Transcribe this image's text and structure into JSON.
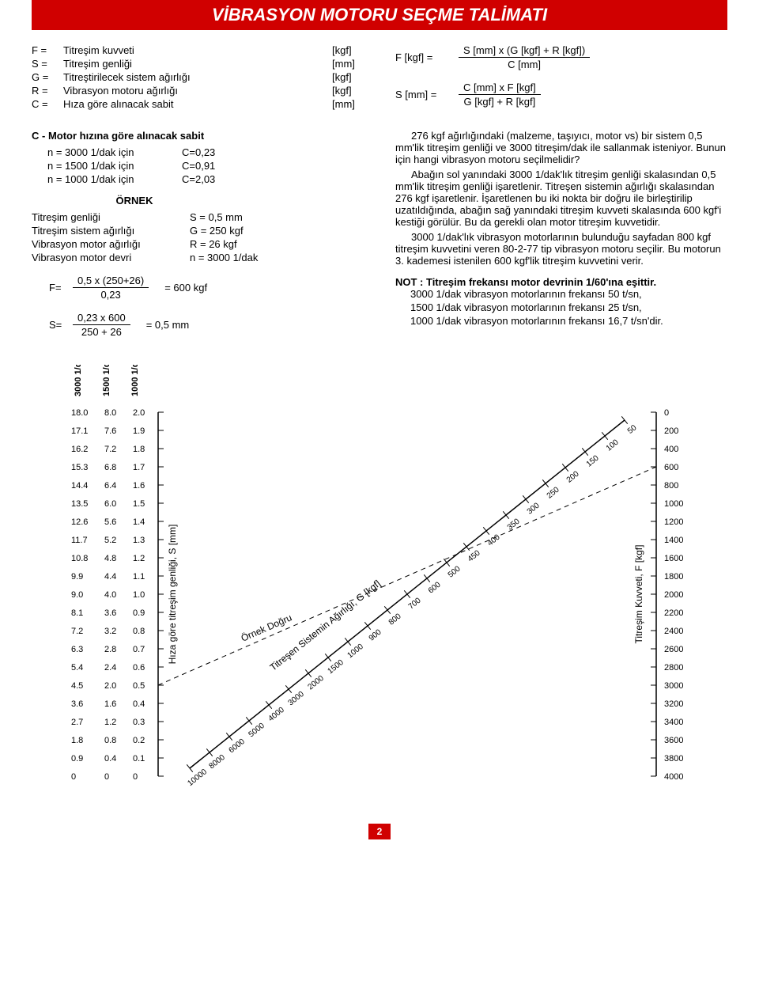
{
  "title": "VİBRASYON MOTORU SEÇME TALİMATI",
  "definitions": [
    {
      "sym": "F =",
      "desc": "Titreşim kuvveti",
      "unit": "[kgf]"
    },
    {
      "sym": "S =",
      "desc": "Titreşim genliği",
      "unit": "[mm]"
    },
    {
      "sym": "G =",
      "desc": "Titreştirilecek sistem ağırlığı",
      "unit": "[kgf]"
    },
    {
      "sym": "R =",
      "desc": "Vibrasyon motoru ağırlığı",
      "unit": "[kgf]"
    },
    {
      "sym": "C =",
      "desc": "Hıza göre alınacak sabit",
      "unit": "[mm]"
    }
  ],
  "top_formulas": [
    {
      "lhs": "F [kgf] =",
      "num": "S [mm] x (G [kgf] + R [kgf])",
      "den": "C [mm]"
    },
    {
      "lhs": "S [mm] =",
      "num": "C [mm] x F [kgf]",
      "den": "G [kgf] + R [kgf]"
    }
  ],
  "c_section": {
    "heading": "C - Motor hızına göre alınacak sabit",
    "rows": [
      {
        "a": "n = 3000 1/dak için",
        "b": "C=0,23"
      },
      {
        "a": "n = 1500 1/dak için",
        "b": "C=0,91"
      },
      {
        "a": "n = 1000 1/dak için",
        "b": "C=2,03"
      }
    ]
  },
  "ornek": {
    "heading": "ÖRNEK",
    "rows": [
      {
        "lbl": "Titreşim genliği",
        "val": "S = 0,5 mm"
      },
      {
        "lbl": "Titreşim sistem ağırlığı",
        "val": "G = 250 kgf"
      },
      {
        "lbl": "Vibrasyon motor ağırlığı",
        "val": "R = 26 kgf"
      },
      {
        "lbl": "Vibrasyon motor devri",
        "val": "n = 3000 1/dak"
      }
    ],
    "calc1": {
      "pre": "F=",
      "num": "0,5 x (250+26)",
      "den": "0,23",
      "res": "= 600 kgf"
    },
    "calc2": {
      "pre": "S=",
      "num": "0,23 x 600",
      "den": "250 + 26",
      "res": "= 0,5 mm"
    }
  },
  "body": {
    "p1": "276 kgf ağırlığındaki (malzeme, taşıyıcı, motor vs) bir sistem 0,5 mm'lik titreşim genliği ve 3000 titreşim/dak ile sallanmak isteniyor. Bunun için hangi vibrasyon motoru seçilmelidir?",
    "p2": "Abağın sol yanındaki 3000 1/dak'lık titreşim genliği skalasından 0,5 mm'lik titreşim genliği işaretlenir. Titreşen sistemin ağırlığı skalasından 276 kgf işaretlenir. İşaretlenen bu iki nokta bir doğru ile birleştirilip uzatıldığında, abağın sağ yanındaki titreşim kuvveti skalasında 600 kgf'i kestiği görülür. Bu da gerekli olan motor titreşim kuvvetidir.",
    "p3": "3000 1/dak'lık vibrasyon motorlarının bulunduğu sayfadan 800 kgf titreşim kuvvetini veren 80-2-77 tip vibrasyon motoru seçilir. Bu motorun 3. kademesi istenilen 600 kgf'lik titreşim kuvvetini verir.",
    "note_head": "NOT : Titreşim frekansı motor devrinin 1/60'ına eşittir.",
    "note1": "3000 1/dak vibrasyon motorlarının frekansı 50 t/sn,",
    "note2": "1500 1/dak vibrasyon motorlarının frekansı 25 t/sn,",
    "note3": "1000 1/dak vibrasyon motorlarının frekansı 16,7 t/sn'dir."
  },
  "nomogram": {
    "left_headers": [
      "3000 1/dak",
      "1500 1/dak",
      "1000 1/dak"
    ],
    "left_rows": [
      [
        "18.0",
        "8.0",
        "2.0"
      ],
      [
        "17.1",
        "7.6",
        "1.9"
      ],
      [
        "16.2",
        "7.2",
        "1.8"
      ],
      [
        "15.3",
        "6.8",
        "1.7"
      ],
      [
        "14.4",
        "6.4",
        "1.6"
      ],
      [
        "13.5",
        "6.0",
        "1.5"
      ],
      [
        "12.6",
        "5.6",
        "1.4"
      ],
      [
        "11.7",
        "5.2",
        "1.3"
      ],
      [
        "10.8",
        "4.8",
        "1.2"
      ],
      [
        "9.9",
        "4.4",
        "1.1"
      ],
      [
        "9.0",
        "4.0",
        "1.0"
      ],
      [
        "8.1",
        "3.6",
        "0.9"
      ],
      [
        "7.2",
        "3.2",
        "0.8"
      ],
      [
        "6.3",
        "2.8",
        "0.7"
      ],
      [
        "5.4",
        "2.4",
        "0.6"
      ],
      [
        "4.5",
        "2.0",
        "0.5"
      ],
      [
        "3.6",
        "1.6",
        "0.4"
      ],
      [
        "2.7",
        "1.2",
        "0.3"
      ],
      [
        "1.8",
        "0.8",
        "0.2"
      ],
      [
        "0.9",
        "0.4",
        "0.1"
      ],
      [
        "0",
        "0",
        "0"
      ]
    ],
    "left_axis_label": "Hıza göre titreşim genliği, S [mm]",
    "right_values": [
      "0",
      "200",
      "400",
      "600",
      "800",
      "1000",
      "1200",
      "1400",
      "1600",
      "1800",
      "2000",
      "2200",
      "2400",
      "2600",
      "2800",
      "3000",
      "3200",
      "3400",
      "3600",
      "3800",
      "4000"
    ],
    "right_axis_label": "Titreşim Kuvveti, F [kgf]",
    "diag_values": [
      "50",
      "100",
      "150",
      "200",
      "250",
      "300",
      "350",
      "400",
      "450",
      "500",
      "600",
      "700",
      "800",
      "900",
      "1000",
      "1500",
      "2000",
      "3000",
      "4000",
      "5000",
      "6000",
      "8000",
      "10000"
    ],
    "diag_axis_label": "Titreşen Sistemin Ağırlığı, G [kgf]",
    "example_line_label": "Örnek Doğru"
  },
  "page_number": "2"
}
